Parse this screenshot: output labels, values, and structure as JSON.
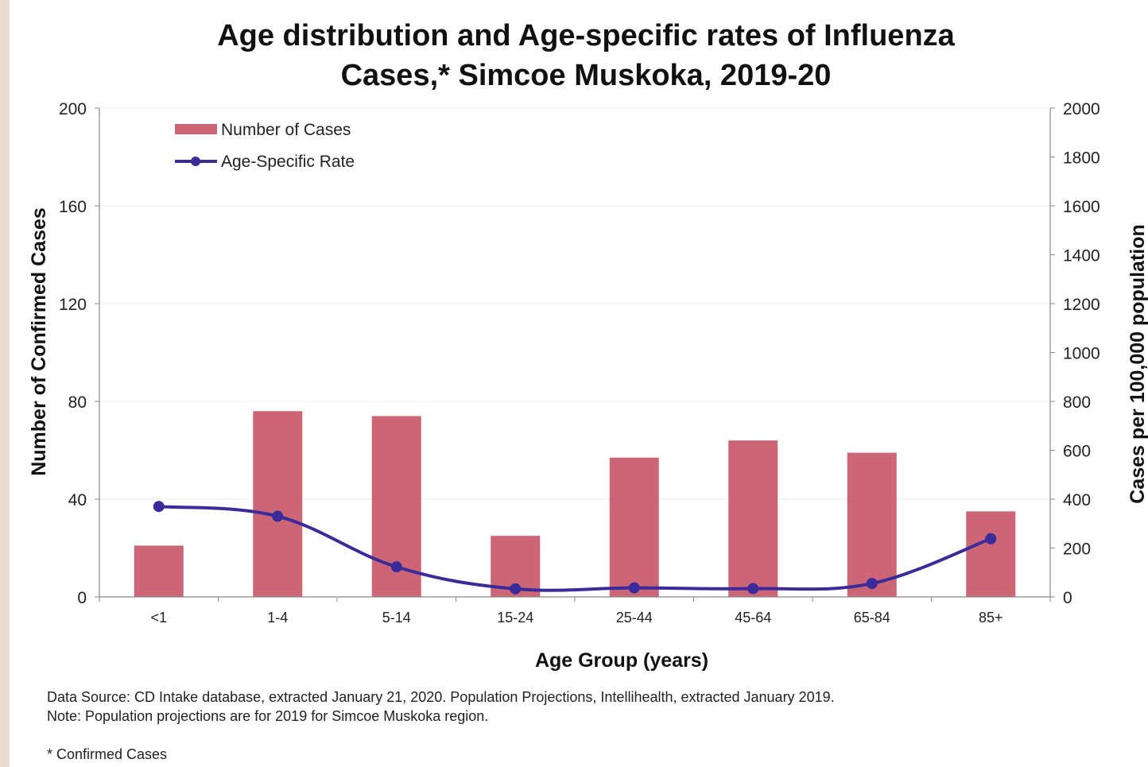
{
  "chart_data": {
    "type": "bar+line",
    "title_lines": [
      "Age distribution and Age-specific rates of Influenza",
      "Cases,* Simcoe Muskoka, 2019-20"
    ],
    "xlabel": "Age Group (years)",
    "ylabel": "Number of Confirmed Cases",
    "y2label": "Cases per 100,000 population",
    "categories": [
      "<1",
      "1-4",
      "5-14",
      "15-24",
      "25-44",
      "45-64",
      "65-84",
      "85+"
    ],
    "ylim": [
      0,
      200
    ],
    "yticks": [
      "0",
      "40",
      "80",
      "120",
      "160",
      "200"
    ],
    "y2lim": [
      0,
      2000
    ],
    "y2ticks": [
      "0",
      "200",
      "400",
      "600",
      "800",
      "1000",
      "1200",
      "1400",
      "1600",
      "1800",
      "2000"
    ],
    "grid": true,
    "legend_position": "top-left",
    "series": [
      {
        "name": "Number of Cases",
        "type": "bar",
        "axis": "left",
        "color": "#cc6677",
        "values": [
          21,
          76,
          74,
          25,
          57,
          64,
          59,
          35
        ]
      },
      {
        "name": "Age-Specific Rate",
        "type": "line",
        "axis": "right",
        "color": "#3a2a9a",
        "values": [
          370,
          330,
          123,
          33,
          37,
          34,
          55,
          238
        ]
      }
    ]
  },
  "footnotes": {
    "source": "Data Source:  CD Intake database,  extracted  January 21, 2020. Population  Projections,  Intellihealth,  extracted  January 2019.",
    "note": "Note:  Population  projections are for 2019 for Simcoe Muskoka  region.",
    "asterisk": "* Confirmed Cases"
  }
}
